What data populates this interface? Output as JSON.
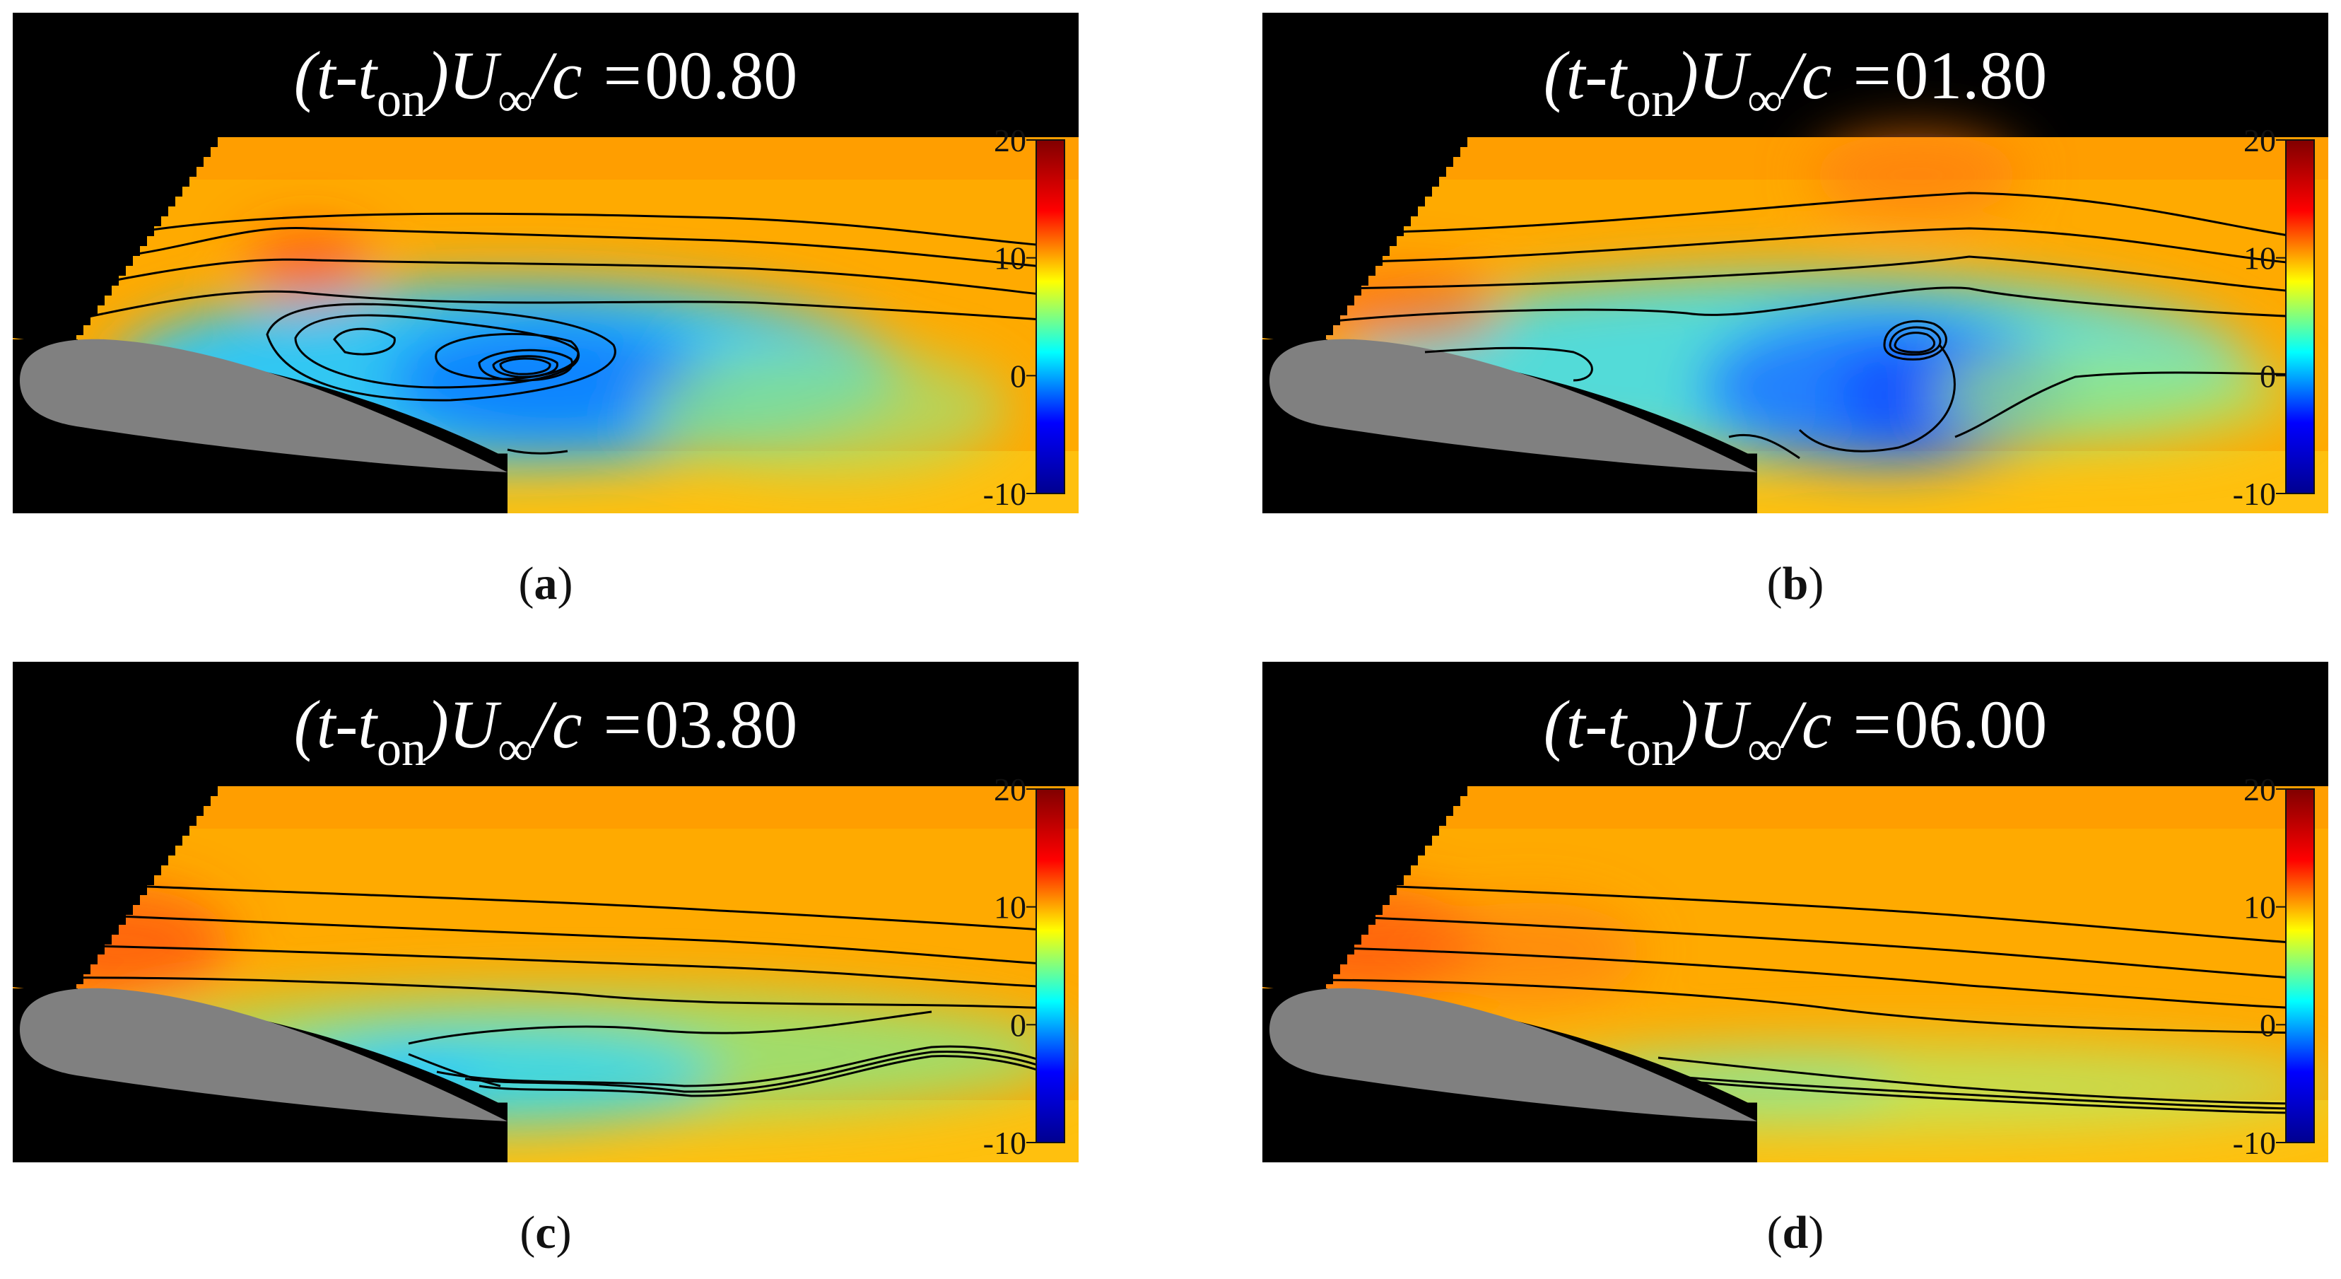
{
  "title_parts": {
    "open": "(t-t",
    "sub_on": "on",
    "mid": ")U",
    "sub_inf": "∞",
    "tail": "/c = "
  },
  "colorbar": {
    "ticks": [
      "20",
      "10",
      "0",
      "-10"
    ],
    "tick_values": [
      20,
      10,
      0,
      -10
    ],
    "range": [
      -10,
      20
    ],
    "colormap": [
      "#00008f",
      "#0000ff",
      "#00ffff",
      "#ffff00",
      "#ff0000",
      "#800000"
    ]
  },
  "panels": [
    {
      "id": "a",
      "time_value": "00.80",
      "caption": "a"
    },
    {
      "id": "b",
      "time_value": "01.80",
      "caption": "b"
    },
    {
      "id": "c",
      "time_value": "03.80",
      "caption": "c"
    },
    {
      "id": "d",
      "time_value": "06.00",
      "caption": "d"
    }
  ],
  "colors": {
    "background_mask": "#000000",
    "airfoil": "#808080",
    "freestream": "#ffaa00",
    "streamline": "#000000"
  }
}
